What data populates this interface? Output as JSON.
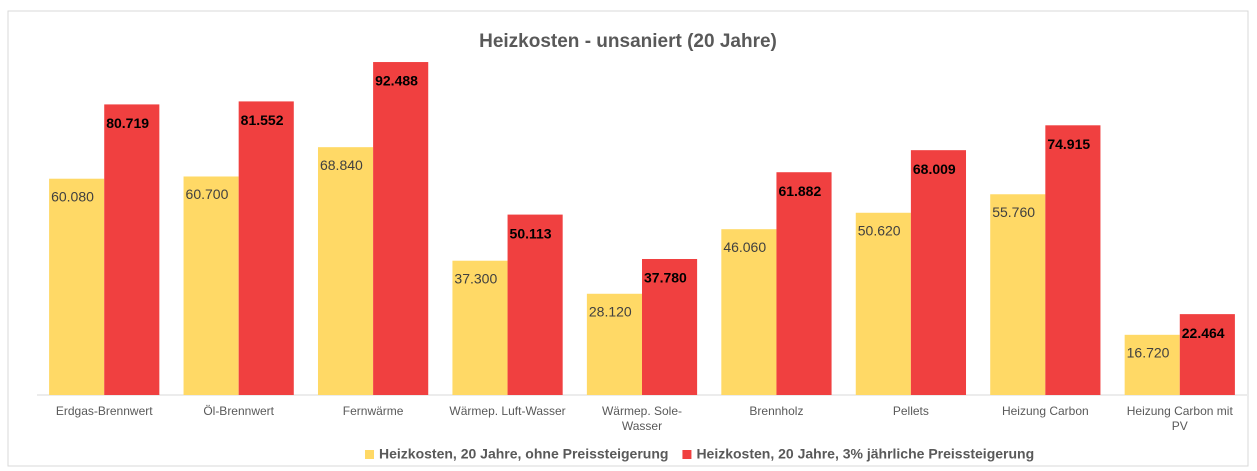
{
  "chart_data": {
    "type": "bar",
    "title": "Heizkosten - unsaniert (20 Jahre)",
    "categories": [
      "Erdgas-Brennwert",
      "Öl-Brennwert",
      "Fernwärme",
      "Wärmep. Luft-Wasser",
      "Wärmep. Sole-Wasser",
      "Brennholz",
      "Pellets",
      "Heizung Carbon",
      "Heizung Carbon mit PV"
    ],
    "series": [
      {
        "name": "Heizkosten, 20 Jahre, ohne Preissteigerung",
        "color": "#ffd966",
        "values": [
          60080,
          60700,
          68840,
          37300,
          28120,
          46060,
          50620,
          55760,
          16720
        ],
        "value_labels": [
          "60.080",
          "60.700",
          "68.840",
          "37.300",
          "28.120",
          "46.060",
          "50.620",
          "55.760",
          "16.720"
        ]
      },
      {
        "name": "Heizkosten, 20 Jahre, 3% jährliche Preissteigerung",
        "color": "#f04040",
        "values": [
          80719,
          81552,
          92488,
          50113,
          37780,
          61882,
          68009,
          74915,
          22464
        ],
        "value_labels": [
          "80.719",
          "81.552",
          "92.488",
          "50.113",
          "37.780",
          "61.882",
          "68.009",
          "74.915",
          "22.464"
        ]
      }
    ],
    "ylim": [
      0,
      100000
    ],
    "legend": "bottom"
  }
}
